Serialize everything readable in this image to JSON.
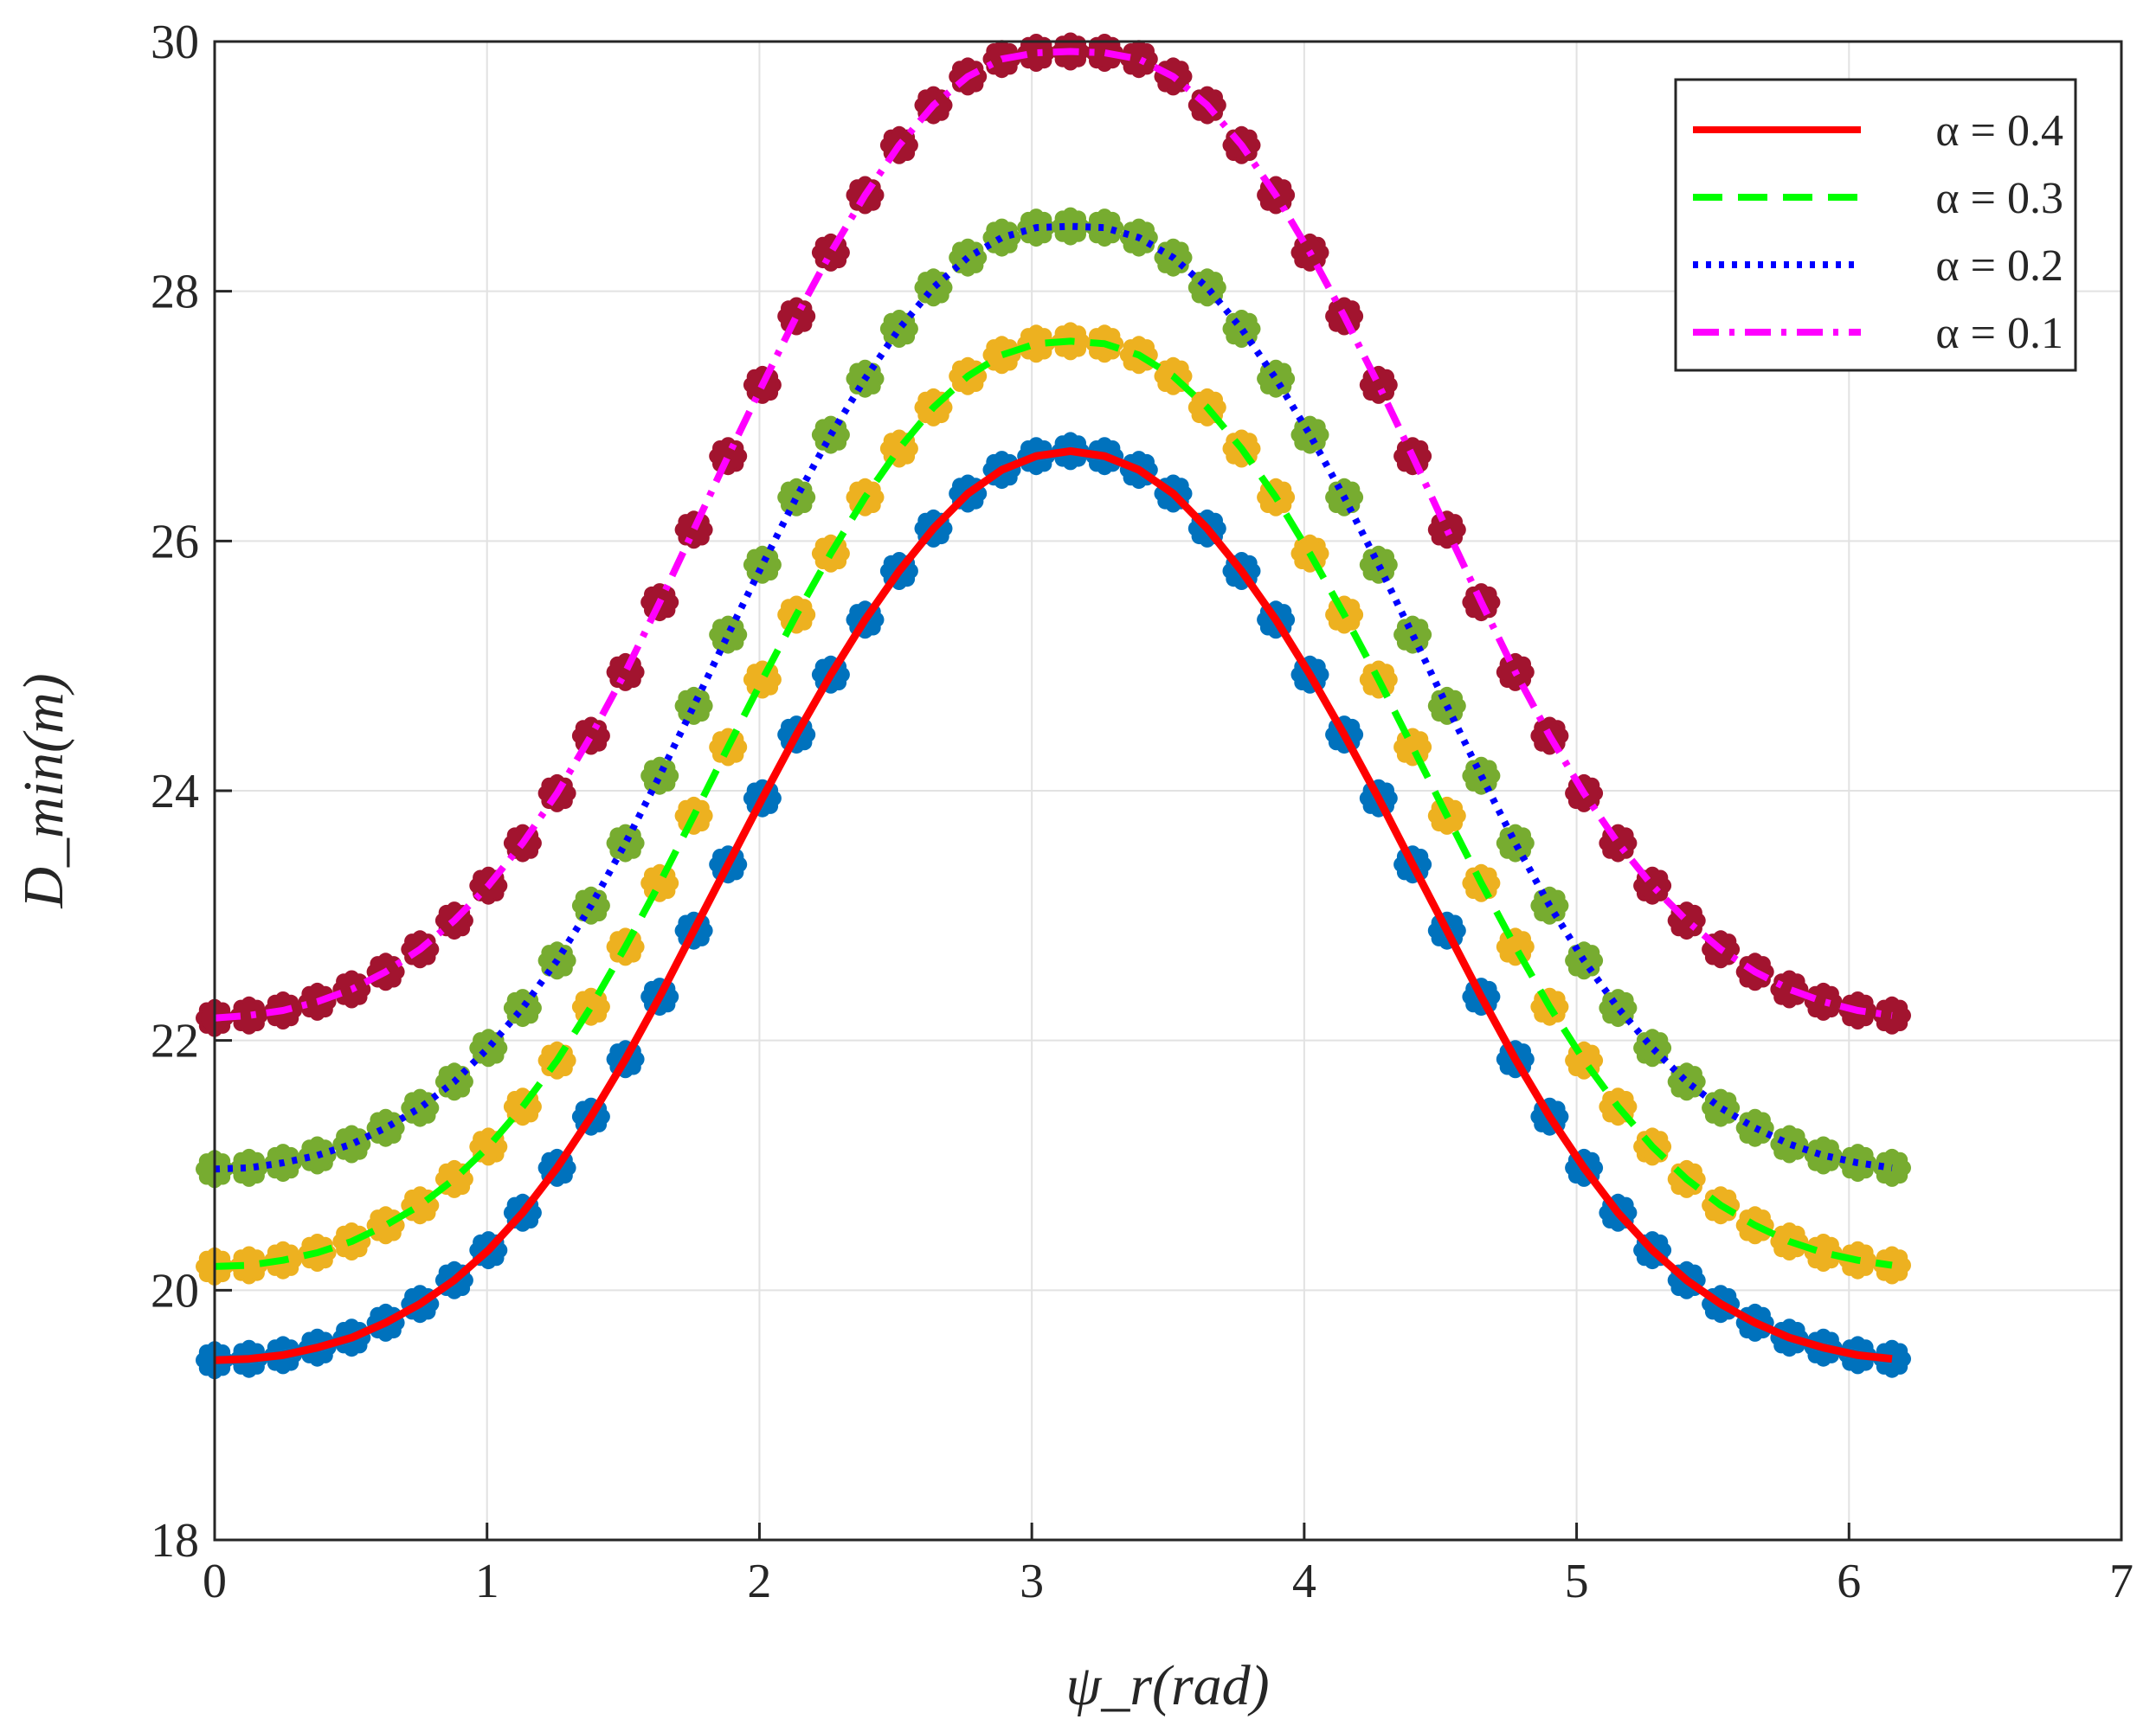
{
  "chart_data": {
    "type": "line",
    "title": "",
    "xlabel": "ψ_r(rad)",
    "ylabel": "D_min(m)",
    "xlim": [
      0,
      7
    ],
    "ylim": [
      18,
      30
    ],
    "xticks": [
      0,
      1,
      2,
      3,
      4,
      5,
      6,
      7
    ],
    "yticks": [
      18,
      20,
      22,
      24,
      26,
      28,
      30
    ],
    "grid": true,
    "legend_position": "top-right",
    "x": [
      0.0,
      0.126,
      0.251,
      0.377,
      0.503,
      0.628,
      0.754,
      0.88,
      1.005,
      1.131,
      1.257,
      1.382,
      1.508,
      1.634,
      1.759,
      1.885,
      2.011,
      2.136,
      2.262,
      2.388,
      2.513,
      2.639,
      2.765,
      2.89,
      3.016,
      3.142,
      3.267,
      3.393,
      3.519,
      3.644,
      3.77,
      3.896,
      4.021,
      4.147,
      4.273,
      4.398,
      4.524,
      4.65,
      4.775,
      4.901,
      5.027,
      5.152,
      5.278,
      5.404,
      5.529,
      5.655,
      5.781,
      5.906,
      6.032,
      6.158
    ],
    "series": [
      {
        "name": "α = 0.4",
        "line_color": "#ff0000",
        "marker_color": "#0072bd",
        "line_style": "solid",
        "values": [
          19.44,
          19.45,
          19.48,
          19.54,
          19.62,
          19.74,
          19.89,
          20.08,
          20.32,
          20.62,
          20.98,
          21.39,
          21.85,
          22.35,
          22.88,
          23.41,
          23.94,
          24.45,
          24.93,
          25.37,
          25.76,
          26.1,
          26.38,
          26.57,
          26.68,
          26.72,
          26.68,
          26.57,
          26.38,
          26.1,
          25.76,
          25.37,
          24.93,
          24.45,
          23.94,
          23.41,
          22.88,
          22.35,
          21.85,
          21.39,
          20.98,
          20.62,
          20.32,
          20.08,
          19.89,
          19.74,
          19.62,
          19.54,
          19.48,
          19.45
        ]
      },
      {
        "name": "α = 0.3",
        "line_color": "#00ff00",
        "marker_color": "#edb120",
        "line_style": "dashed",
        "values": [
          20.19,
          20.2,
          20.24,
          20.3,
          20.39,
          20.52,
          20.68,
          20.89,
          21.15,
          21.47,
          21.84,
          22.27,
          22.75,
          23.26,
          23.8,
          24.35,
          24.89,
          25.41,
          25.9,
          26.35,
          26.74,
          27.07,
          27.32,
          27.49,
          27.58,
          27.6,
          27.58,
          27.49,
          27.32,
          27.07,
          26.74,
          26.35,
          25.9,
          25.41,
          24.89,
          24.35,
          23.8,
          23.26,
          22.75,
          22.27,
          21.84,
          21.47,
          21.15,
          20.89,
          20.68,
          20.52,
          20.39,
          20.3,
          20.24,
          20.2
        ]
      },
      {
        "name": "α = 0.2",
        "line_color": "#0000ff",
        "marker_color": "#77ac30",
        "line_style": "dotted",
        "values": [
          20.97,
          20.98,
          21.02,
          21.08,
          21.17,
          21.3,
          21.46,
          21.67,
          21.94,
          22.26,
          22.64,
          23.08,
          23.58,
          24.12,
          24.68,
          25.25,
          25.81,
          26.35,
          26.85,
          27.3,
          27.7,
          28.03,
          28.27,
          28.43,
          28.51,
          28.52,
          28.51,
          28.43,
          28.27,
          28.03,
          27.7,
          27.3,
          26.85,
          26.35,
          25.81,
          25.25,
          24.68,
          24.12,
          23.58,
          23.08,
          22.64,
          22.26,
          21.94,
          21.67,
          21.46,
          21.3,
          21.17,
          21.08,
          21.02,
          20.98
        ]
      },
      {
        "name": "α = 0.1",
        "line_color": "#ff00ff",
        "marker_color": "#a2142f",
        "line_style": "dashdot",
        "values": [
          22.18,
          22.2,
          22.24,
          22.31,
          22.41,
          22.55,
          22.73,
          22.96,
          23.24,
          23.58,
          23.98,
          24.44,
          24.95,
          25.51,
          26.09,
          26.68,
          27.25,
          27.8,
          28.31,
          28.77,
          29.17,
          29.49,
          29.72,
          29.86,
          29.91,
          29.92,
          29.91,
          29.86,
          29.72,
          29.49,
          29.17,
          28.77,
          28.31,
          27.8,
          27.25,
          26.68,
          26.09,
          25.51,
          24.95,
          24.44,
          23.98,
          23.58,
          23.24,
          22.96,
          22.73,
          22.55,
          22.41,
          22.31,
          22.24,
          22.2
        ]
      }
    ]
  }
}
